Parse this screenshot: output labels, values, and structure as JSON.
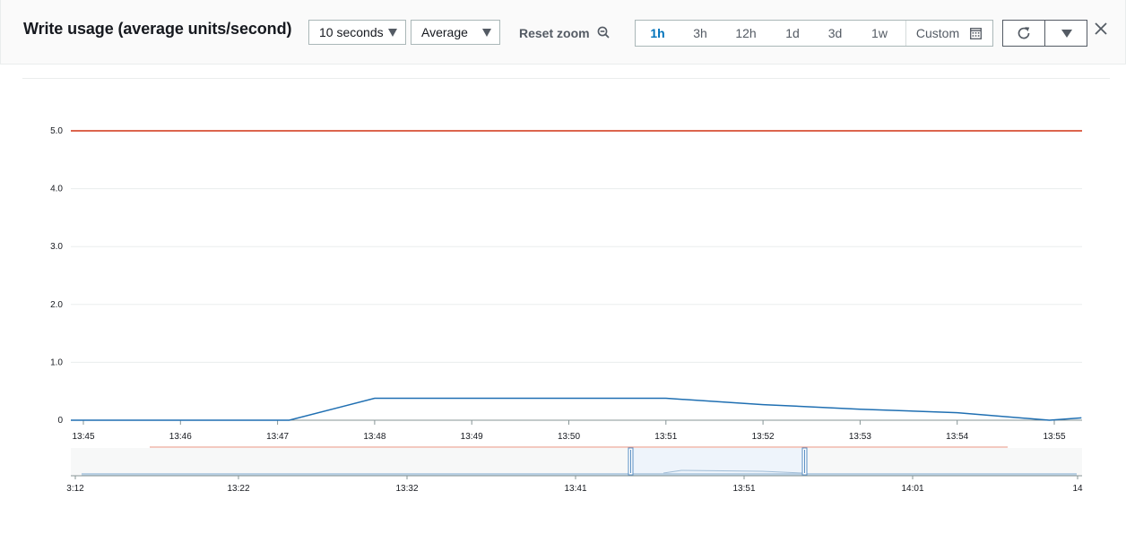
{
  "header": {
    "title": "Write usage (average units/second)",
    "period_select": {
      "value": "10 seconds"
    },
    "stat_select": {
      "value": "Average"
    },
    "reset_zoom_label": "Reset zoom",
    "time_ranges": [
      "1h",
      "3h",
      "12h",
      "1d",
      "3d",
      "1w"
    ],
    "active_range": "1h",
    "custom_label": "Custom"
  },
  "colors": {
    "threshold": "#d13212",
    "series": "#1f6fb2",
    "accent": "#0073bb"
  },
  "chart_data": {
    "type": "line",
    "x": [
      "13:45",
      "13:46",
      "13:47",
      "13:48",
      "13:49",
      "13:50",
      "13:51",
      "13:52",
      "13:53",
      "13:54",
      "13:55"
    ],
    "y_ticks": [
      "0",
      "1.0",
      "2.0",
      "3.0",
      "4.0",
      "5.0"
    ],
    "ylim": [
      0,
      5
    ],
    "series": [
      {
        "points": [
          [
            0,
            0
          ],
          [
            1.05,
            0
          ],
          [
            2.12,
            0
          ],
          [
            3.0,
            0.38
          ],
          [
            4,
            0.38
          ],
          [
            5,
            0.38
          ],
          [
            6,
            0.38
          ],
          [
            7,
            0.27
          ],
          [
            8,
            0.19
          ],
          [
            9,
            0.13
          ],
          [
            9.95,
            0.0
          ],
          [
            10.28,
            0.04
          ]
        ]
      }
    ],
    "threshold": 5.0,
    "grid": true
  },
  "navigator": {
    "ticks": [
      "3:12",
      "13:22",
      "13:32",
      "13:41",
      "13:51",
      "14:01",
      "14"
    ]
  }
}
